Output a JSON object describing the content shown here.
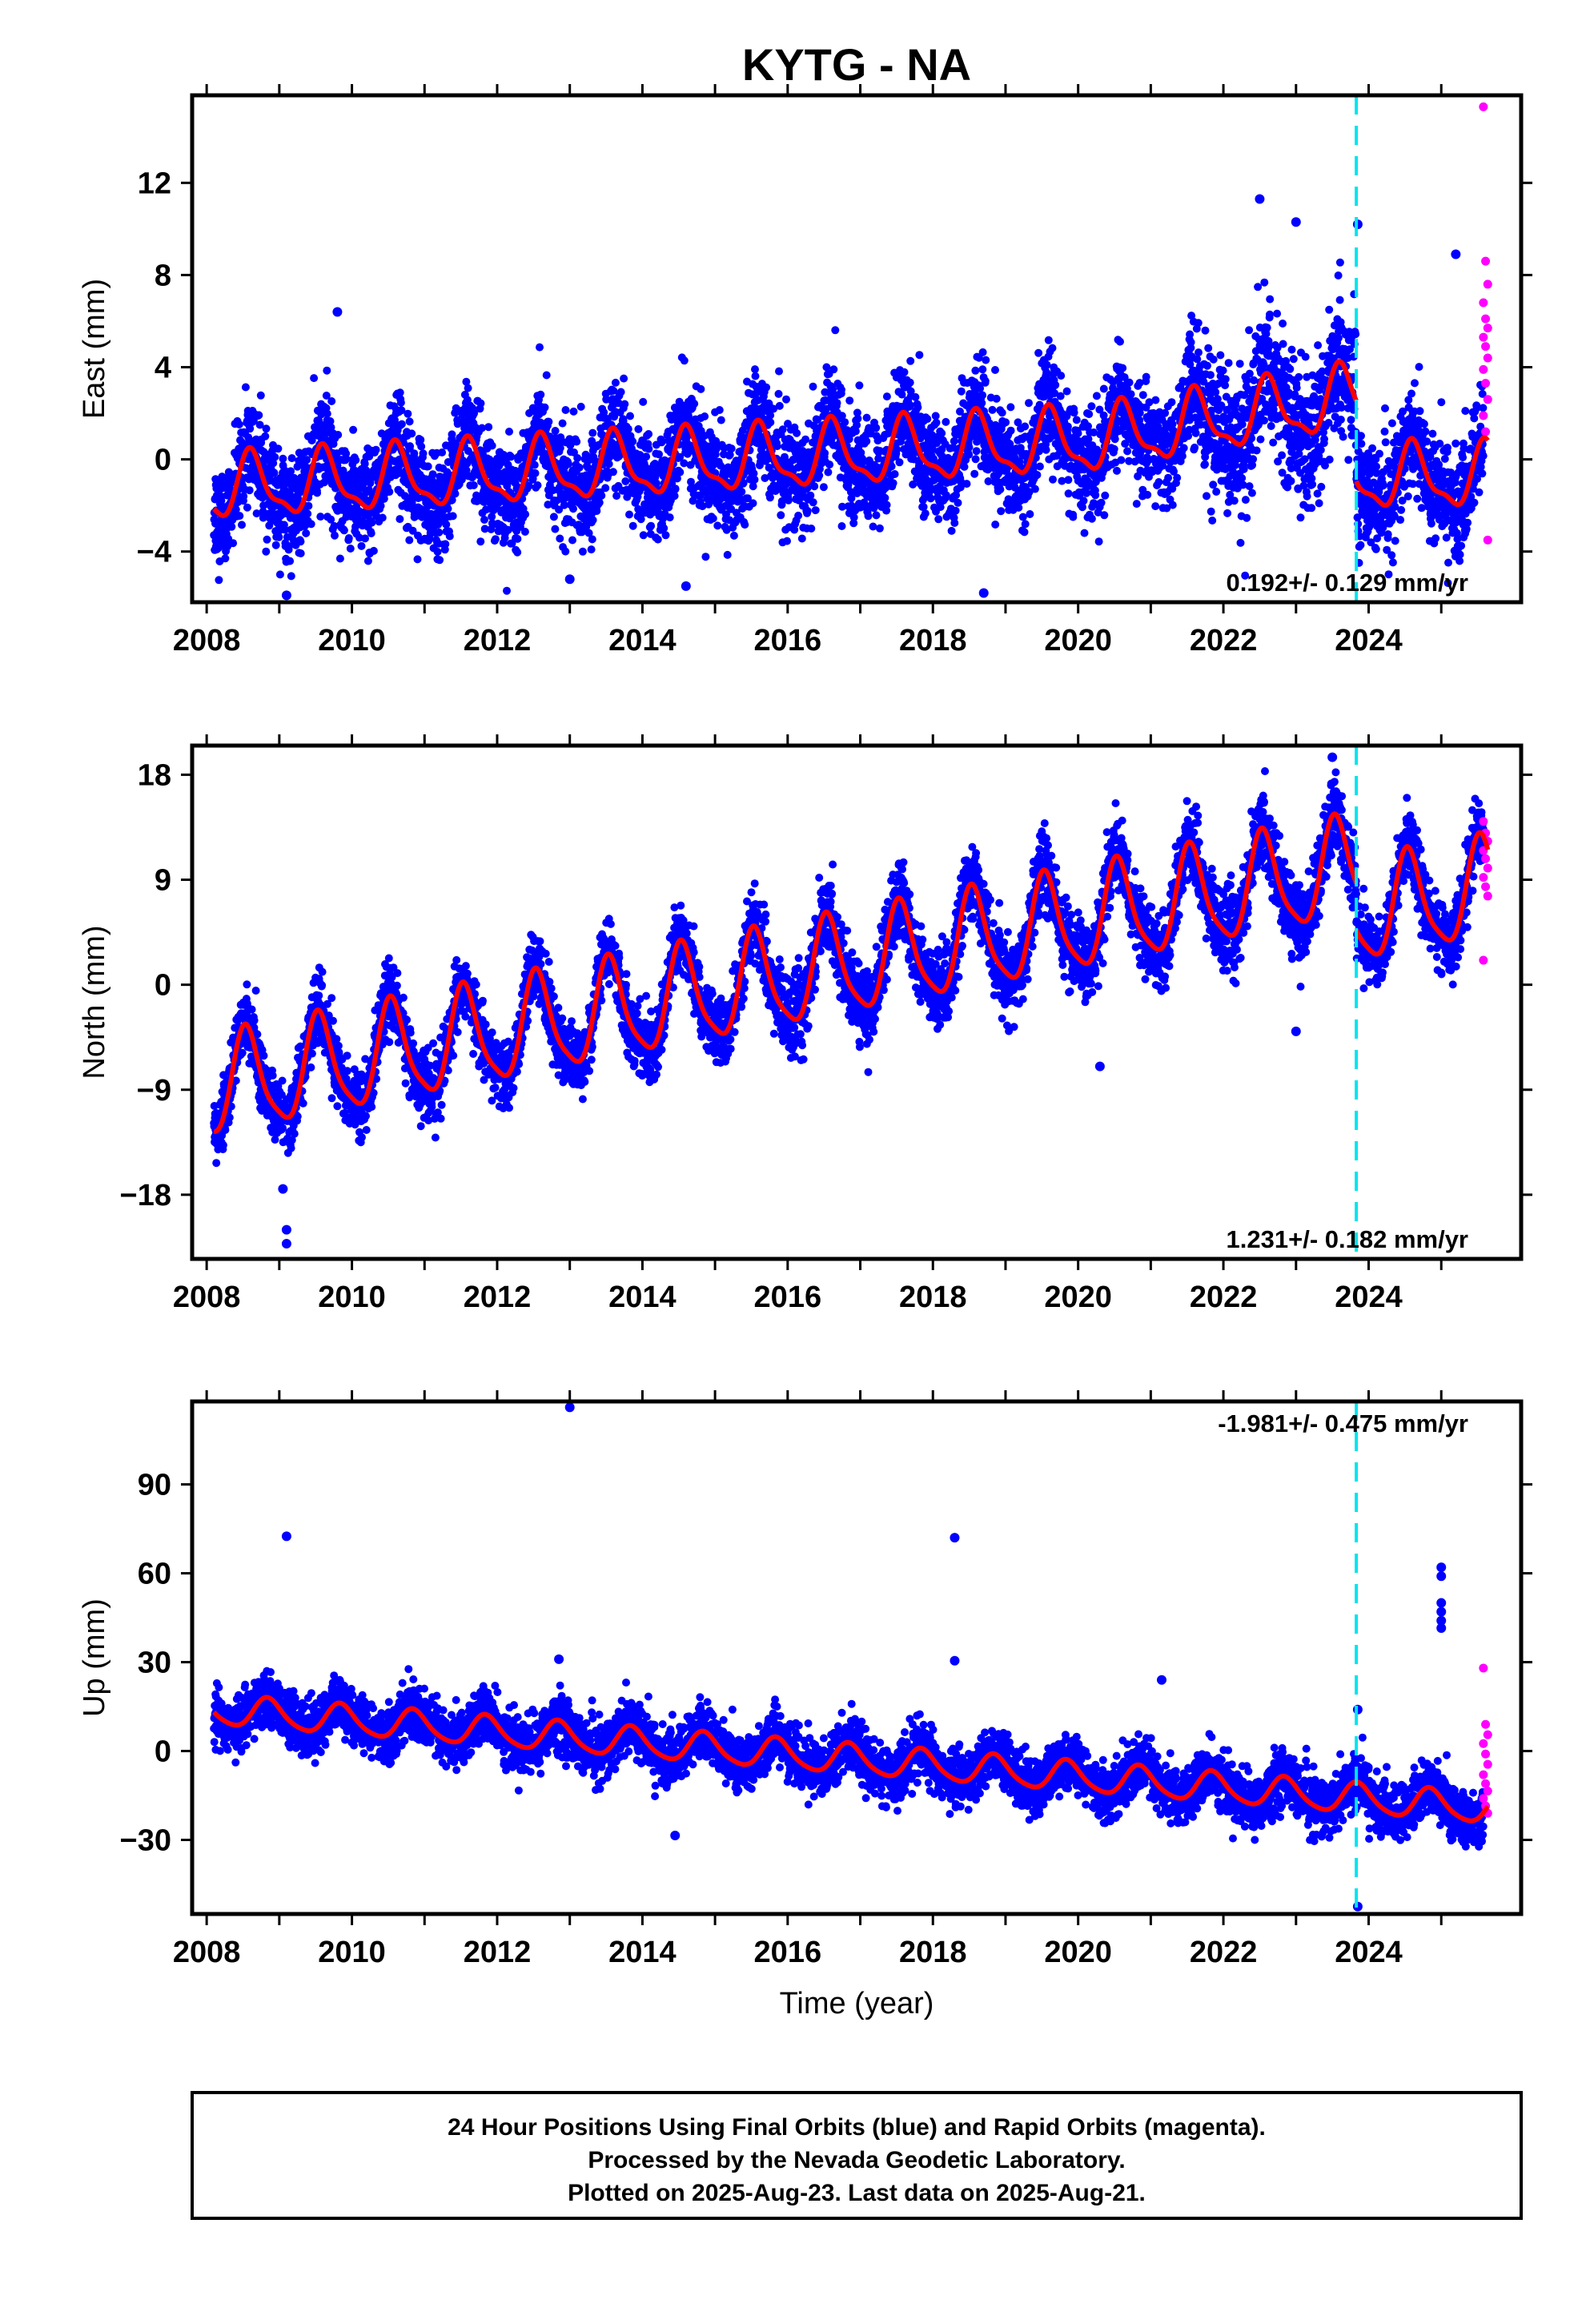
{
  "title": "KYTG - NA",
  "xlabel": "Time (year)",
  "footer": {
    "line1": "24 Hour Positions Using Final Orbits (blue) and Rapid Orbits (magenta).",
    "line2": "Processed by the Nevada Geodetic Laboratory.",
    "line3": "Plotted on 2025-Aug-23. Last data on 2025-Aug-21."
  },
  "colors": {
    "final": "#0000ff",
    "rapid": "#ff00ff",
    "model": "#ff0000",
    "event_line": "#00e5ee"
  },
  "chart_data": [
    {
      "type": "scatter",
      "name": "east",
      "ylabel": "East (mm)",
      "xlim": [
        2007.8,
        2026.1
      ],
      "ylim": [
        -6.2,
        15.8
      ],
      "x_ticks": [
        2008,
        2010,
        2012,
        2014,
        2016,
        2018,
        2020,
        2022,
        2024
      ],
      "y_ticks": [
        -4,
        0,
        4,
        8,
        12
      ],
      "rate_label": "0.192+/- 0.129 mm/yr",
      "rate_position": "bottom-right",
      "event_line_x": 2023.83,
      "model": {
        "segments": [
          {
            "x_start": 2008.1,
            "x_end": 2023.83,
            "offset_at_2008": -1.3,
            "rate_mm_yr": 0.17,
            "ramp_start": 2020.2,
            "ramp_mm_yr": 0.35,
            "annual_amp": 1.3,
            "annual_peak": 0.62,
            "semiannual_amp": 0.45
          },
          {
            "x_start": 2023.83,
            "x_end": 2025.64,
            "offset_at_2008": -1.3,
            "rate_mm_yr": 0.03,
            "ramp_start": 2030.0,
            "ramp_mm_yr": 0.0,
            "annual_amp": 1.3,
            "annual_peak": 0.62,
            "semiannual_amp": 0.45
          }
        ],
        "noise_sd": 1.1
      },
      "final_points_range": [
        2008.1,
        2025.58
      ],
      "rapid_points": {
        "x_start": 2025.58,
        "x_end": 2025.64,
        "y": [
          15.3,
          8.6,
          7.6,
          6.8,
          6.1,
          5.7,
          5.3,
          4.9,
          4.4,
          3.9,
          3.3,
          2.6,
          1.9,
          1.2,
          -3.5
        ]
      },
      "outliers": [
        {
          "x": 2009.8,
          "y": 6.4
        },
        {
          "x": 2009.1,
          "y": -5.9
        },
        {
          "x": 2013.0,
          "y": -5.2
        },
        {
          "x": 2018.7,
          "y": -5.8
        },
        {
          "x": 2022.5,
          "y": 11.3
        },
        {
          "x": 2023.85,
          "y": 10.2
        },
        {
          "x": 2025.2,
          "y": 8.9
        },
        {
          "x": 2014.6,
          "y": -5.5
        },
        {
          "x": 2023.0,
          "y": 10.3
        }
      ]
    },
    {
      "type": "scatter",
      "name": "north",
      "ylabel": "North (mm)",
      "xlim": [
        2007.8,
        2026.1
      ],
      "ylim": [
        -23.5,
        20.5
      ],
      "x_ticks": [
        2008,
        2010,
        2012,
        2014,
        2016,
        2018,
        2020,
        2022,
        2024
      ],
      "y_ticks": [
        -18,
        -9,
        0,
        9,
        18
      ],
      "rate_label": "1.231+/- 0.182 mm/yr",
      "rate_position": "bottom-right",
      "event_line_x": 2023.83,
      "model": {
        "segments": [
          {
            "x_start": 2008.1,
            "x_end": 2023.83,
            "offset_at_2008": -9.0,
            "rate_mm_yr": 1.2,
            "ramp_start": 2030.0,
            "ramp_mm_yr": 0.0,
            "annual_amp": 4.2,
            "annual_peak": 0.55,
            "semiannual_amp": 0.9
          },
          {
            "x_start": 2023.83,
            "x_end": 2025.64,
            "offset_at_2008": -13.0,
            "rate_mm_yr": 1.2,
            "ramp_start": 2030.0,
            "ramp_mm_yr": 0.0,
            "annual_amp": 4.2,
            "annual_peak": 0.55,
            "semiannual_amp": 0.9
          }
        ],
        "noise_sd": 1.4
      },
      "final_points_range": [
        2008.1,
        2025.58
      ],
      "rapid_points": {
        "x_start": 2025.58,
        "x_end": 2025.64,
        "y": [
          14.0,
          13.0,
          12.3,
          11.5,
          10.8,
          10.0,
          9.2,
          8.4,
          7.6,
          2.1
        ]
      },
      "outliers": [
        {
          "x": 2009.1,
          "y": -22.2
        },
        {
          "x": 2009.1,
          "y": -21.0
        },
        {
          "x": 2009.05,
          "y": -17.5
        },
        {
          "x": 2023.5,
          "y": 19.5
        },
        {
          "x": 2020.3,
          "y": -7.0
        },
        {
          "x": 2023.0,
          "y": -4.0
        }
      ]
    },
    {
      "type": "scatter",
      "name": "up",
      "ylabel": "Up (mm)",
      "xlim": [
        2007.8,
        2026.1
      ],
      "ylim": [
        -55,
        118
      ],
      "x_ticks": [
        2008,
        2010,
        2012,
        2014,
        2016,
        2018,
        2020,
        2022,
        2024
      ],
      "y_ticks": [
        -30,
        0,
        30,
        60,
        90
      ],
      "rate_label": "-1.981+/- 0.475 mm/yr",
      "rate_position": "top-right",
      "event_line_x": 2023.83,
      "model": {
        "segments": [
          {
            "x_start": 2008.1,
            "x_end": 2025.64,
            "offset_at_2008": 14.0,
            "rate_mm_yr": -1.9,
            "ramp_start": 2030.0,
            "ramp_mm_yr": 0.0,
            "annual_amp": 5.0,
            "annual_peak": 0.85,
            "semiannual_amp": 0.8
          }
        ],
        "noise_sd": 4.5
      },
      "final_points_range": [
        2008.1,
        2025.58
      ],
      "rapid_points": {
        "x_start": 2025.58,
        "x_end": 2025.64,
        "y": [
          28.0,
          9.0,
          5.5,
          2.5,
          -1.0,
          -4.5,
          -8.0,
          -11.0,
          -13.5,
          -16.0,
          -18.5,
          -21.0
        ]
      },
      "outliers": [
        {
          "x": 2009.1,
          "y": 72.5
        },
        {
          "x": 2013.0,
          "y": 116.0
        },
        {
          "x": 2018.3,
          "y": 72.0
        },
        {
          "x": 2018.3,
          "y": 30.5
        },
        {
          "x": 2012.85,
          "y": 31.0
        },
        {
          "x": 2014.45,
          "y": -28.5
        },
        {
          "x": 2021.15,
          "y": 24.0
        },
        {
          "x": 2023.85,
          "y": -52.5
        },
        {
          "x": 2023.85,
          "y": 14.0
        },
        {
          "x": 2025.0,
          "y": 62.0
        },
        {
          "x": 2025.0,
          "y": 59.0
        },
        {
          "x": 2025.0,
          "y": 50.0
        },
        {
          "x": 2025.0,
          "y": 47.0
        },
        {
          "x": 2025.0,
          "y": 44.0
        },
        {
          "x": 2025.0,
          "y": 41.5
        }
      ]
    }
  ]
}
